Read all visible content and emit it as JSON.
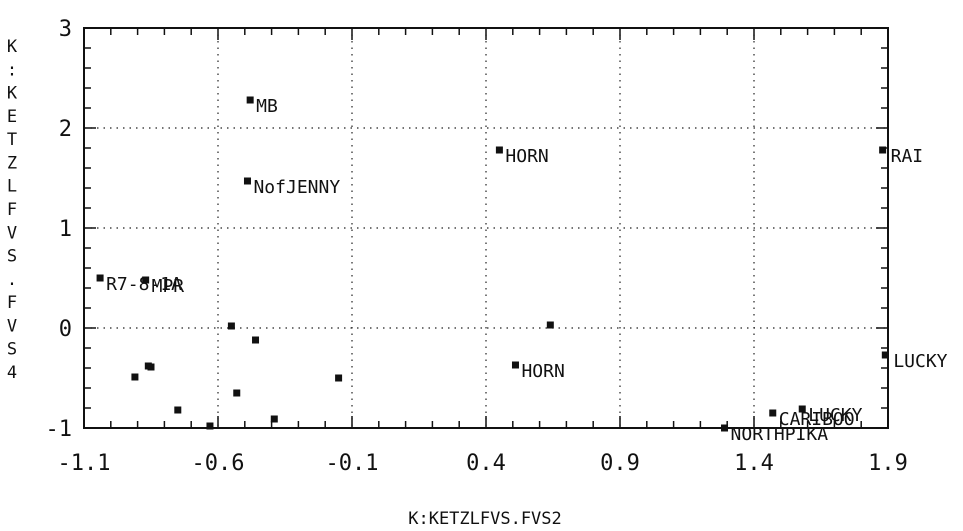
{
  "chart_data": {
    "type": "scatter",
    "title": "",
    "xlabel": "K:KETZLFVS.FVS2",
    "ylabel": "K:KETZLFVS.FVS4",
    "xlim": [
      -1.1,
      1.9
    ],
    "ylim": [
      -1,
      3
    ],
    "xticks": [
      -1.1,
      -0.6,
      -0.1,
      0.4,
      0.9,
      1.4,
      1.9
    ],
    "xtick_labels": [
      "-1.1",
      "-0.6",
      "-0.1",
      "0.4",
      "0.9",
      "1.4",
      "1.9"
    ],
    "yticks": [
      -1,
      0,
      1,
      2,
      3
    ],
    "ytick_labels": [
      "-1",
      "0",
      "1",
      "2",
      "3"
    ],
    "grid": true,
    "grid_style": "dotted",
    "marker_color": "#111111",
    "points": [
      {
        "x": -1.04,
        "y": 0.5,
        "label": "R7-8-1A"
      },
      {
        "x": -0.87,
        "y": 0.48,
        "label": "MPR"
      },
      {
        "x": -0.48,
        "y": 2.28,
        "label": "MB"
      },
      {
        "x": -0.49,
        "y": 1.47,
        "label": "NofJENNY"
      },
      {
        "x": 0.45,
        "y": 1.78,
        "label": "HORN"
      },
      {
        "x": 1.88,
        "y": 1.78,
        "label": "RAI"
      },
      {
        "x": 1.89,
        "y": -0.27,
        "label": "LUCKY"
      },
      {
        "x": 0.51,
        "y": -0.37,
        "label": "HORN"
      },
      {
        "x": 1.29,
        "y": -1.0,
        "label": "NORTHPIKA"
      },
      {
        "x": 1.47,
        "y": -0.85,
        "label": "CARIBOO"
      },
      {
        "x": 1.58,
        "y": -0.81,
        "label": "LUCKY"
      },
      {
        "x": -0.55,
        "y": 0.02,
        "label": ""
      },
      {
        "x": -0.46,
        "y": -0.12,
        "label": ""
      },
      {
        "x": -0.15,
        "y": -0.5,
        "label": ""
      },
      {
        "x": -0.91,
        "y": -0.49,
        "label": ""
      },
      {
        "x": -0.86,
        "y": -0.38,
        "label": ""
      },
      {
        "x": -0.85,
        "y": -0.39,
        "label": ""
      },
      {
        "x": -0.75,
        "y": -0.82,
        "label": ""
      },
      {
        "x": -0.53,
        "y": -0.65,
        "label": ""
      },
      {
        "x": -0.39,
        "y": -0.91,
        "label": ""
      },
      {
        "x": -0.63,
        "y": -0.98,
        "label": ""
      },
      {
        "x": 0.64,
        "y": 0.03,
        "label": ""
      }
    ]
  }
}
